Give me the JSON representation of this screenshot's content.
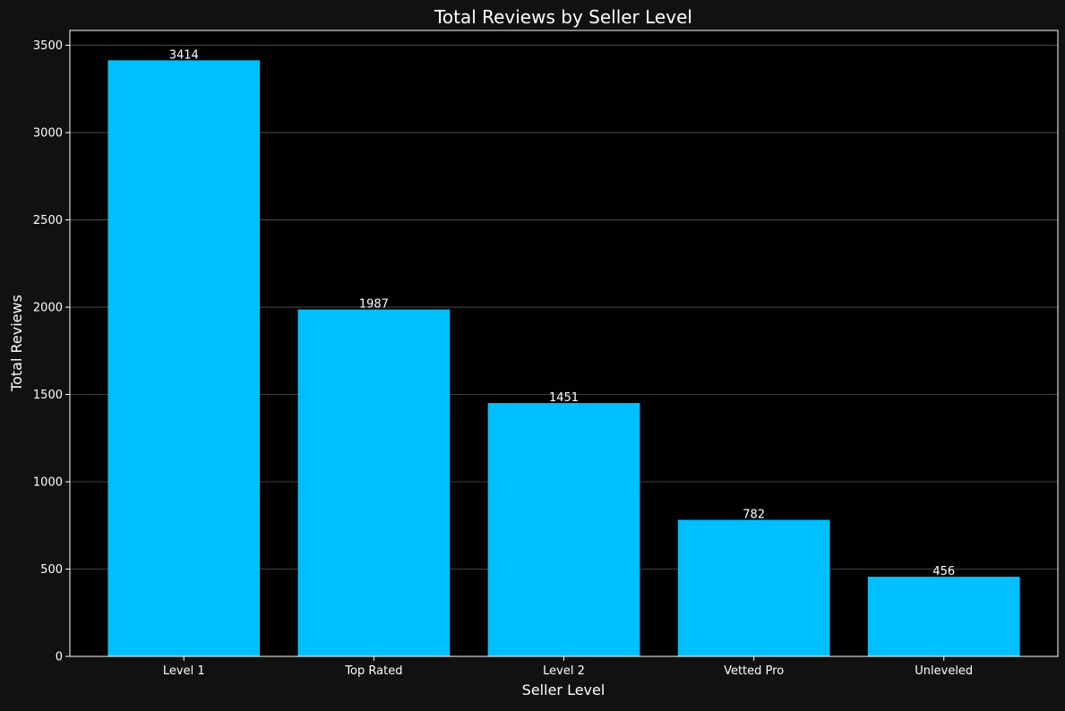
{
  "chart_data": {
    "type": "bar",
    "title": "Total Reviews by Seller Level",
    "xlabel": "Seller Level",
    "ylabel": "Total Reviews",
    "categories": [
      "Level 1",
      "Top Rated",
      "Level 2",
      "Vetted Pro",
      "Unleveled"
    ],
    "values": [
      3414,
      1987,
      1451,
      782,
      456
    ],
    "data_labels": [
      "3414",
      "1987",
      "1451",
      "782",
      "456"
    ],
    "ylim": [
      0,
      3585
    ],
    "yticks": [
      0,
      500,
      1000,
      1500,
      2000,
      2500,
      3000,
      3500
    ],
    "grid": "horizontal",
    "legend": "none"
  },
  "colors": {
    "figure_background": "#111111",
    "plot_background": "#000000",
    "bar": "#00bfff",
    "text": "#ffffff",
    "grid": "#555555",
    "axis": "#ffffff"
  }
}
